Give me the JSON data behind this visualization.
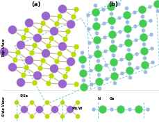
{
  "title_a": "(a)",
  "title_b": "(b)",
  "label_top": "Top View",
  "label_side": "Side View",
  "label_SSe": "S/Se",
  "label_MoW": "Mo/W",
  "label_N": "N",
  "label_Ga": "Ga",
  "color_Mo": "#9966CC",
  "color_S": "#BBDD00",
  "color_N": "#99BBDD",
  "color_Ga": "#44CC55",
  "color_bond_MoS": "#AA9955",
  "color_bond_GaN": "#88AACC",
  "color_dashed": "#66BBCC",
  "bg_color": "#FFFFFF"
}
